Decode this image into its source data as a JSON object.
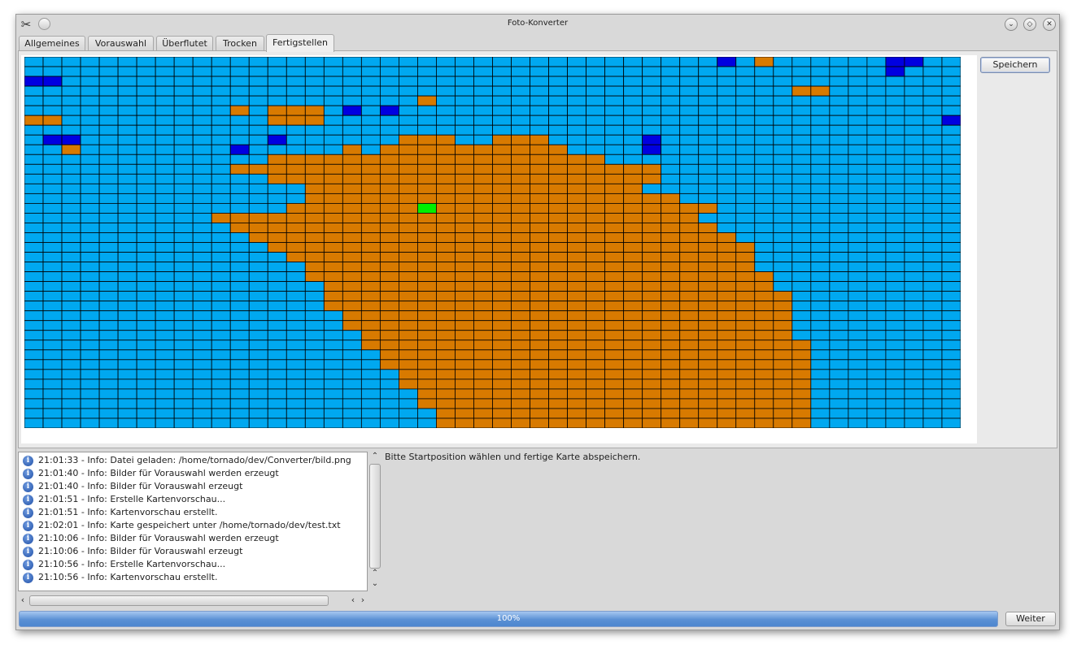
{
  "window": {
    "title": "Foto-Konverter",
    "app_icon": "tools-icon",
    "controls": [
      "minimize-icon",
      "maximize-icon",
      "close-icon"
    ]
  },
  "tabs": [
    {
      "label": "Allgemeines",
      "active": false
    },
    {
      "label": "Vorauswahl",
      "active": false
    },
    {
      "label": "Überflutet",
      "active": false
    },
    {
      "label": "Trocken",
      "active": false
    },
    {
      "label": "Fertigstellen",
      "active": true
    }
  ],
  "buttons": {
    "save": "Speichern",
    "next": "Weiter"
  },
  "map": {
    "cols": 50,
    "rows": 38,
    "legend": {
      "A": "#00a8f0",
      "B": "#0000e0",
      "O": "#d87a00",
      "G": "#00f000"
    },
    "grid": [
      "AAAAAAAAAAAAAAAAAAAAAAAAAAAAAAAAAAAAABAOAAAAAABBAA",
      "AAAAAAAAAAAAAAAAAAAAAAAAAAAAAAAAAAAAAAAAAAAAAABAAA",
      "BBAAAAAAAAAAAAAAAAAAAAAAAAAAAAAAAAAAAAAAAAAAAAAAAA",
      "AAAAAAAAAAAAAAAAAAAAAAAAAAAAAAAAAAAAAAAAAOOAAAAAAA",
      "AAAAAAAAAAAAAAAAAAAAAOAAAAAAAAAAAAAAAAAAAAAAAAAAAA",
      "AAAAAAAAAAAOAOOOABABAAAAAAAAAAAAAAAAAAAAAAAAAAAAAA",
      "OOAAAAAAAAAAAOOOAAAAAAAAAAAAAAAAAAAAAAAAAAAAAAAAAB",
      "AAAAAAAAAAAAAAAAAAAAAAAAAAAAAAAAAAAAAAAAAAAAAAAAAA",
      "ABBAAAAAAAAAABAAAAAAOOOAAOOOAAAAABAAAAAAAAAAAAAAAA",
      "AAOAAAAAAAABAAAAAOAOOOOOOOOOOAAAABAAAAAAAAAAAAAAAA",
      "AAAAAAAAAAAAAOOOOOOOOOOOOOOOOOOAAAAAAAAAAAAAAAAAAA",
      "AAAAAAAAAAAOOOOOOOOOOOOOOOOOOOOOOOAAAAAAAAAAAAAAAA",
      "AAAAAAAAAAAAAOOOOOOOOOOOOOOOOOOOOOAAAAAAAAAAAAAAAA",
      "AAAAAAAAAAAAAAAOOOOOOOOOOOOOOOOOOAAAAAAAAAAAAAAAAA",
      "AAAAAAAAAAAAAAAOOOOOOOOOOOOOOOOOOOOAAAAAAAAAAAAAAA",
      "AAAAAAAAAAAAAAOOOOOOOOOOOOOOOOOOOOOOOAAAAAAAAAAAAA",
      "AAAAAAAAAAOOOOOOOOOOOOOOOOOOOOOOOOOOAAAAAAAAAAAAAA",
      "AAAAAAAAAAAOOOOOOOOOOOOOOOOOOOOOOOOOOAAAAAAAAAAAAA",
      "AAAAAAAAAAAAOOOOOOOOOOOOOOOOOOOOOOOOOOAAAAAAAAAAAA",
      "AAAAAAAAAAAAAOOOOOOOOOOOOOOOOOOOOOOOOOOAAAAAAAAAAA",
      "AAAAAAAAAAAAAAOOOOOOOOOOOOOOOOOOOOOOOOOAAAAAAAAAAA",
      "AAAAAAAAAAAAAAAOOOOOOOOOOOOOOOOOOOOOOOOAAAAAAAAAAA",
      "AAAAAAAAAAAAAAAOOOOOOOOOOOOOOOOOOOOOOOOOAAAAAAAAAA",
      "AAAAAAAAAAAAAAAAOOOOOOOOOOOOOOOOOOOOOOOOAAAAAAAAAA",
      "AAAAAAAAAAAAAAAAOOOOOOOOOOOOOOOOOOOOOOOOOAAAAAAAAA",
      "AAAAAAAAAAAAAAAAOOOOOOOOOOOOOOOOOOOOOOOOOAAAAAAAAA",
      "AAAAAAAAAAAAAAAAAOOOOOOOOOOOOOOOOOOOOOOOOAAAAAAAAA",
      "AAAAAAAAAAAAAAAAAOOOOOOOOOOOOOOOOOOOOOOOOAAAAAAAAA",
      "AAAAAAAAAAAAAAAAAAOOOOOOOOOOOOOOOOOOOOOOOAAAAAAAAA",
      "AAAAAAAAAAAAAAAAAAOOOOOOOOOOOOOOOOOOOOOOOOAAAAAAAA",
      "AAAAAAAAAAAAAAAAAAAOOOOOOOOOOOOOOOOOOOOOOOAAAAAAAA",
      "AAAAAAAAAAAAAAAAAAAOOOOOOOOOOOOOOOOOOOOOOOAAAAAAAA",
      "AAAAAAAAAAAAAAAAAAAAOOOOOOOOOOOOOOOOOOOOOOAAAAAAAA",
      "AAAAAAAAAAAAAAAAAAAAOOOOOOOOOOOOOOOOOOOOOOAAAAAAAA",
      "AAAAAAAAAAAAAAAAAAAAAOOOOOOOOOOOOOOOOOOOOOAAAAAAAA",
      "AAAAAAAAAAAAAAAAAAAAAOOOOOOOOOOOOOOOOOOOOOAAAAAAAA",
      "AAAAAAAAAAAAAAAAAAAAAAOOOOOOOOOOOOOOOOOOOOAAAAAAAA",
      "AAAAAAAAAAAAAAAAAAAAAAOOOOOOOOOOOOOOOOOOOOAAAAAAAA"
    ],
    "start_cell": {
      "row": 15,
      "col": 21
    }
  },
  "log": {
    "entries": [
      {
        "icon": "info-icon",
        "text": "21:01:33 - Info: Datei geladen: /home/tornado/dev/Converter/bild.png"
      },
      {
        "icon": "info-icon",
        "text": "21:01:40 - Info: Bilder für Vorauswahl werden erzeugt"
      },
      {
        "icon": "info-icon",
        "text": "21:01:40 - Info: Bilder für Vorauswahl erzeugt"
      },
      {
        "icon": "info-icon",
        "text": "21:01:51 - Info: Erstelle Kartenvorschau..."
      },
      {
        "icon": "info-icon",
        "text": "21:01:51 - Info: Kartenvorschau erstellt."
      },
      {
        "icon": "info-icon",
        "text": "21:02:01 - Info: Karte gespeichert unter /home/tornado/dev/test.txt"
      },
      {
        "icon": "info-icon",
        "text": "21:10:06 - Info: Bilder für Vorauswahl werden erzeugt"
      },
      {
        "icon": "info-icon",
        "text": "21:10:06 - Info: Bilder für Vorauswahl erzeugt"
      },
      {
        "icon": "info-icon",
        "text": "21:10:56 - Info: Erstelle Kartenvorschau..."
      },
      {
        "icon": "info-icon",
        "text": "21:10:56 - Info: Kartenvorschau erstellt."
      }
    ]
  },
  "hint": "Bitte Startposition wählen und fertige Karte abspeichern.",
  "progress": {
    "value": 1.0,
    "label": "100%"
  }
}
